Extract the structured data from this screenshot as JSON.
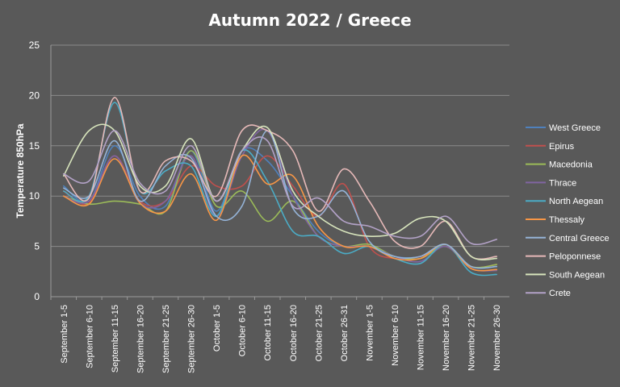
{
  "chart_data": {
    "type": "line",
    "title": "Autumn 2022  / Greece",
    "xlabel": "",
    "ylabel": "Temperature 850hPa",
    "ylim": [
      0,
      25
    ],
    "yticks": [
      0,
      5,
      10,
      15,
      20,
      25
    ],
    "grid": true,
    "legend": "right",
    "categories": [
      "September 1-5",
      "September 6-10",
      "September 11-15",
      "September 16-20",
      "September 21-25",
      "September 26-30",
      "October 1-5",
      "October 6-10",
      "October 11-15",
      "October 16-20",
      "October 21-25",
      "October 26-31",
      "November 1-5",
      "November 6-10",
      "November 11-15",
      "November 16-20",
      "November 21-25",
      "November 26-30"
    ],
    "series": [
      {
        "name": "West Greece",
        "color": "#4f81bd",
        "values": [
          11.0,
          9.5,
          15.0,
          10.0,
          9.0,
          14.5,
          8.5,
          14.5,
          13.5,
          10.0,
          6.5,
          5.0,
          5.0,
          4.0,
          4.0,
          5.2,
          3.0,
          3.0
        ]
      },
      {
        "name": "Epirus",
        "color": "#c0504d",
        "values": [
          10.5,
          9.3,
          14.0,
          9.5,
          9.5,
          13.0,
          11.0,
          11.0,
          14.0,
          11.0,
          8.0,
          11.2,
          5.0,
          3.8,
          4.0,
          5.0,
          3.0,
          3.2
        ]
      },
      {
        "name": "Macedonia",
        "color": "#9bbb59",
        "values": [
          10.0,
          9.2,
          9.5,
          9.2,
          8.5,
          14.5,
          9.0,
          10.5,
          7.5,
          9.5,
          6.0,
          5.0,
          5.2,
          4.0,
          3.8,
          5.0,
          3.0,
          3.2
        ]
      },
      {
        "name": "Thrace",
        "color": "#8064a2",
        "values": [
          10.0,
          9.5,
          14.0,
          9.3,
          9.5,
          14.0,
          8.0,
          14.0,
          16.5,
          10.0,
          6.0,
          5.0,
          5.0,
          4.0,
          3.5,
          5.0,
          2.8,
          2.6
        ]
      },
      {
        "name": "North Aegean",
        "color": "#4bacc6",
        "values": [
          10.5,
          10.0,
          19.3,
          10.5,
          12.5,
          13.0,
          8.0,
          14.5,
          11.5,
          6.5,
          6.0,
          4.3,
          5.0,
          3.8,
          3.3,
          5.2,
          2.4,
          2.2
        ]
      },
      {
        "name": "Thessaly",
        "color": "#f79646",
        "values": [
          10.0,
          9.2,
          13.7,
          9.3,
          8.5,
          12.2,
          7.6,
          14.0,
          11.2,
          12.0,
          7.0,
          5.0,
          5.0,
          3.8,
          3.8,
          5.2,
          2.8,
          2.7
        ]
      },
      {
        "name": "Central Greece",
        "color": "#95b3d7",
        "values": [
          10.8,
          10.0,
          15.5,
          9.5,
          13.0,
          13.8,
          8.0,
          9.0,
          16.5,
          8.8,
          8.0,
          10.5,
          5.5,
          4.0,
          4.0,
          5.2,
          3.0,
          3.0
        ]
      },
      {
        "name": "Peloponnese",
        "color": "#e6b9b8",
        "values": [
          12.2,
          9.8,
          19.8,
          10.5,
          13.5,
          13.5,
          10.0,
          16.5,
          16.5,
          14.5,
          8.5,
          12.7,
          9.5,
          5.5,
          5.0,
          7.5,
          4.0,
          4.0
        ]
      },
      {
        "name": "South Aegean",
        "color": "#d7e4bc",
        "values": [
          12.0,
          16.5,
          16.5,
          11.0,
          11.0,
          15.7,
          9.5,
          14.5,
          16.8,
          10.5,
          8.0,
          6.5,
          6.0,
          6.3,
          7.8,
          7.5,
          4.0,
          3.8
        ]
      },
      {
        "name": "Crete",
        "color": "#b3a2c7",
        "values": [
          12.2,
          11.5,
          16.5,
          11.3,
          10.5,
          15.0,
          9.5,
          14.5,
          15.5,
          9.0,
          9.8,
          7.5,
          7.0,
          6.0,
          6.0,
          8.0,
          5.3,
          5.7
        ]
      }
    ]
  }
}
